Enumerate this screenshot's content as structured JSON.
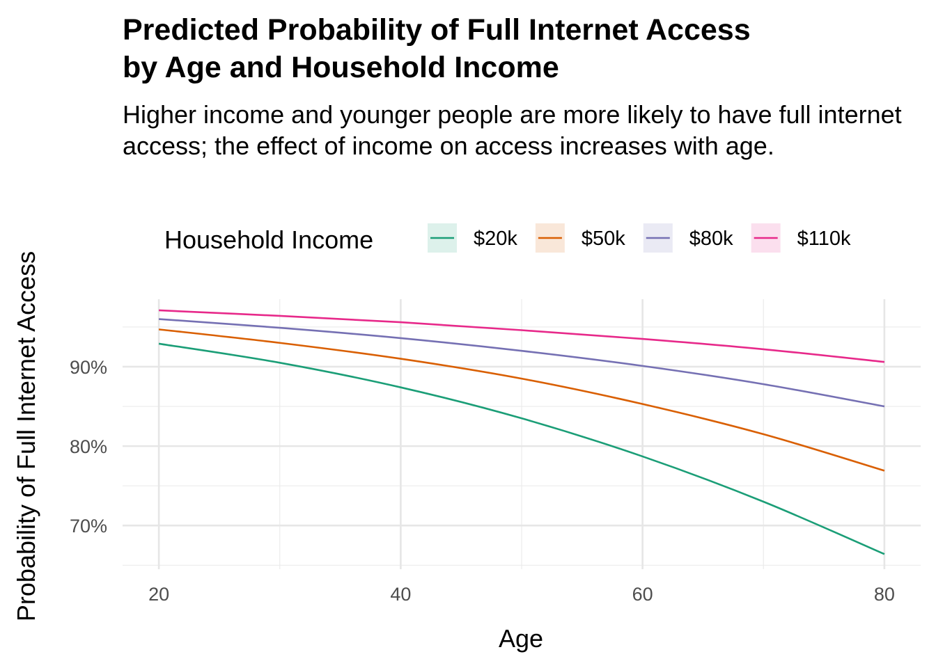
{
  "chart_data": {
    "type": "line",
    "title": "Predicted Probability of Full Internet Access\nby Age and Household Income",
    "subtitle": "Higher income and younger people are more likely to have full internet access; the effect of income on access increases with age.",
    "xlabel": "Age",
    "ylabel": "Probability of Full Internet Access",
    "xlim": [
      17,
      83
    ],
    "ylim": [
      0.645,
      0.985
    ],
    "x_ticks": [
      20,
      40,
      60,
      80
    ],
    "y_ticks": [
      0.7,
      0.8,
      0.9
    ],
    "y_tick_labels": [
      "70%",
      "80%",
      "90%"
    ],
    "grid": true,
    "legend": {
      "title": "Household Income",
      "position": "top"
    },
    "x": [
      20,
      30,
      40,
      50,
      60,
      70,
      80
    ],
    "series": [
      {
        "name": "$20k",
        "color": "#1b9e77",
        "values": [
          0.929,
          0.905,
          0.874,
          0.835,
          0.787,
          0.73,
          0.664
        ]
      },
      {
        "name": "$50k",
        "color": "#d95f02",
        "values": [
          0.947,
          0.93,
          0.91,
          0.885,
          0.853,
          0.815,
          0.769
        ]
      },
      {
        "name": "$80k",
        "color": "#7570b3",
        "values": [
          0.96,
          0.949,
          0.936,
          0.92,
          0.901,
          0.878,
          0.85
        ]
      },
      {
        "name": "$110k",
        "color": "#e7298a",
        "values": [
          0.971,
          0.964,
          0.956,
          0.946,
          0.935,
          0.922,
          0.906
        ]
      }
    ]
  }
}
